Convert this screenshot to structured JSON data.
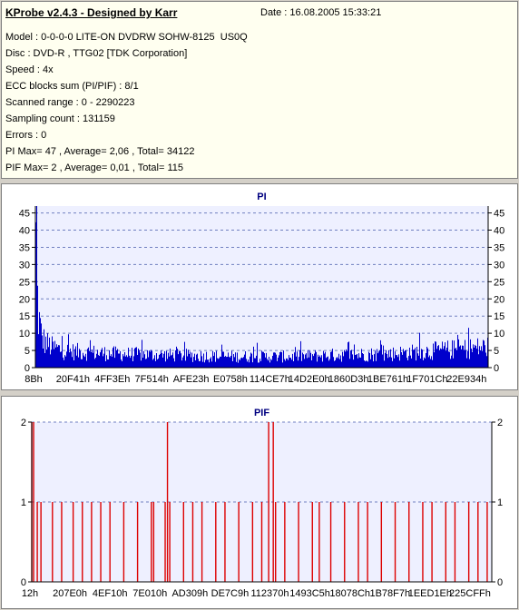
{
  "header": {
    "title": "KProbe v2.4.3 - Designed by Karr",
    "date": "Date : 16.08.2005 15:33:21",
    "lines": [
      "Model : 0-0-0-0 LITE-ON DVDRW SOHW-8125  US0Q",
      "Disc : DVD-R , TTG02 [TDK Corporation]",
      "Speed : 4x",
      "ECC blocks sum (PI/PIF) : 8/1",
      "Scanned range : 0 - 2290223",
      "Sampling count : 131159",
      "Errors : 0",
      "PI Max= 47 , Average= 2,06 , Total= 34122",
      "PIF Max= 2 , Average= 0,01 , Total= 115"
    ]
  },
  "colors": {
    "pi_bar": "#0000cc",
    "pif_bar": "#dd0000",
    "plot_bg": "#eef0ff",
    "title": "#000080",
    "grid": "#7080c0"
  },
  "chart_data": [
    {
      "type": "bar",
      "title": "PI",
      "xlabel": "",
      "ylabel": "",
      "ylim": [
        0,
        47
      ],
      "yticks": [
        0,
        5,
        10,
        15,
        20,
        25,
        30,
        35,
        40,
        45
      ],
      "x_tick_labels": [
        "8Bh",
        "20F41h",
        "4FF3Eh",
        "7F514h",
        "AFE23h",
        "E0758h",
        "114CE7h",
        "14D2E0h",
        "1860D3h",
        "1BE761h",
        "1F701Ch",
        "22E934h"
      ],
      "grid": true,
      "x_range": [
        139,
        2290223
      ],
      "series": [
        {
          "profile_x": [
            139,
            5000,
            15000,
            30000,
            50000,
            80000,
            150000,
            400000,
            700000,
            1000000,
            1300000,
            1500000,
            1800000,
            2000000,
            2200000,
            2290223
          ],
          "typical": [
            45,
            30,
            18,
            11,
            9,
            7.5,
            6,
            5,
            4.5,
            4,
            4,
            4.5,
            5,
            6,
            7,
            7.5
          ],
          "peak": 47,
          "average": 2.06,
          "total": 34122
        }
      ]
    },
    {
      "type": "bar",
      "title": "PIF",
      "xlabel": "",
      "ylabel": "",
      "ylim": [
        0,
        2
      ],
      "yticks": [
        0,
        1,
        2
      ],
      "x_tick_labels": [
        "12h",
        "207E0h",
        "4EF10h",
        "7E010h",
        "AD309h",
        "DE7C9h",
        "112370h",
        "1493C5h",
        "18078Ch",
        "1B78F7h",
        "1EED1Eh",
        "225CFFh"
      ],
      "grid": true,
      "x_range": [
        18,
        2290223
      ],
      "series": [
        {
          "points": [
            [
              0.0,
              2
            ],
            [
              0.004,
              2
            ],
            [
              0.012,
              1
            ],
            [
              0.02,
              1
            ],
            [
              0.045,
              1
            ],
            [
              0.065,
              1
            ],
            [
              0.09,
              1
            ],
            [
              0.11,
              1
            ],
            [
              0.13,
              1
            ],
            [
              0.15,
              1
            ],
            [
              0.17,
              1
            ],
            [
              0.2,
              1
            ],
            [
              0.23,
              1
            ],
            [
              0.26,
              1
            ],
            [
              0.265,
              1
            ],
            [
              0.29,
              1
            ],
            [
              0.295,
              2
            ],
            [
              0.3,
              1
            ],
            [
              0.33,
              1
            ],
            [
              0.35,
              1
            ],
            [
              0.37,
              1
            ],
            [
              0.4,
              1
            ],
            [
              0.42,
              1
            ],
            [
              0.45,
              1
            ],
            [
              0.48,
              1
            ],
            [
              0.5,
              1
            ],
            [
              0.515,
              2
            ],
            [
              0.525,
              2
            ],
            [
              0.53,
              1
            ],
            [
              0.55,
              1
            ],
            [
              0.58,
              1
            ],
            [
              0.61,
              1
            ],
            [
              0.625,
              1
            ],
            [
              0.65,
              1
            ],
            [
              0.68,
              1
            ],
            [
              0.71,
              1
            ],
            [
              0.73,
              1
            ],
            [
              0.76,
              1
            ],
            [
              0.79,
              1
            ],
            [
              0.82,
              1
            ],
            [
              0.85,
              1
            ],
            [
              0.87,
              1
            ],
            [
              0.9,
              1
            ],
            [
              0.92,
              1
            ],
            [
              0.95,
              1
            ],
            [
              0.97,
              1
            ],
            [
              0.99,
              1
            ]
          ],
          "peak": 2,
          "average": 0.01,
          "total": 115
        }
      ]
    }
  ]
}
